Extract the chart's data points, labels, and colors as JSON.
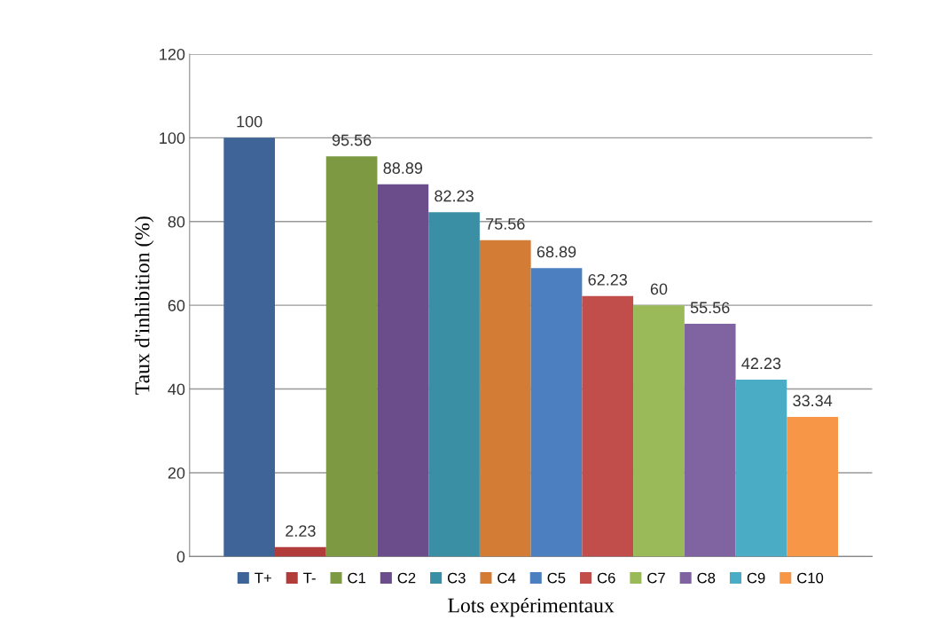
{
  "chart_data": {
    "type": "bar",
    "xlabel": "Lots expérimentaux",
    "ylabel": "Taux d'inhibition (%)",
    "categories": [
      null
    ],
    "series": [
      {
        "name": "T+",
        "color": "#3f6498",
        "values": [
          100
        ]
      },
      {
        "name": "T-",
        "color": "#b13c3a",
        "values": [
          2.23
        ]
      },
      {
        "name": "C1",
        "color": "#7d9a43",
        "values": [
          95.56
        ]
      },
      {
        "name": "C2",
        "color": "#6a4d8a",
        "values": [
          88.89
        ]
      },
      {
        "name": "C3",
        "color": "#3a8fa5",
        "values": [
          82.23
        ]
      },
      {
        "name": "C4",
        "color": "#d27c35",
        "values": [
          75.56
        ]
      },
      {
        "name": "C5",
        "color": "#4c7fc0",
        "values": [
          68.89
        ]
      },
      {
        "name": "C6",
        "color": "#c24e4b",
        "values": [
          62.23
        ]
      },
      {
        "name": "C7",
        "color": "#9aba59",
        "values": [
          60
        ]
      },
      {
        "name": "C8",
        "color": "#8064a2",
        "values": [
          55.56
        ]
      },
      {
        "name": "C9",
        "color": "#4bacc6",
        "values": [
          42.23
        ]
      },
      {
        "name": "C10",
        "color": "#f79646",
        "values": [
          33.34
        ]
      }
    ],
    "ylim": [
      0,
      120
    ],
    "yticks": [
      0,
      20,
      40,
      60,
      80,
      100,
      120
    ],
    "grid": "y",
    "data_labels": true,
    "legend": "bottom"
  }
}
